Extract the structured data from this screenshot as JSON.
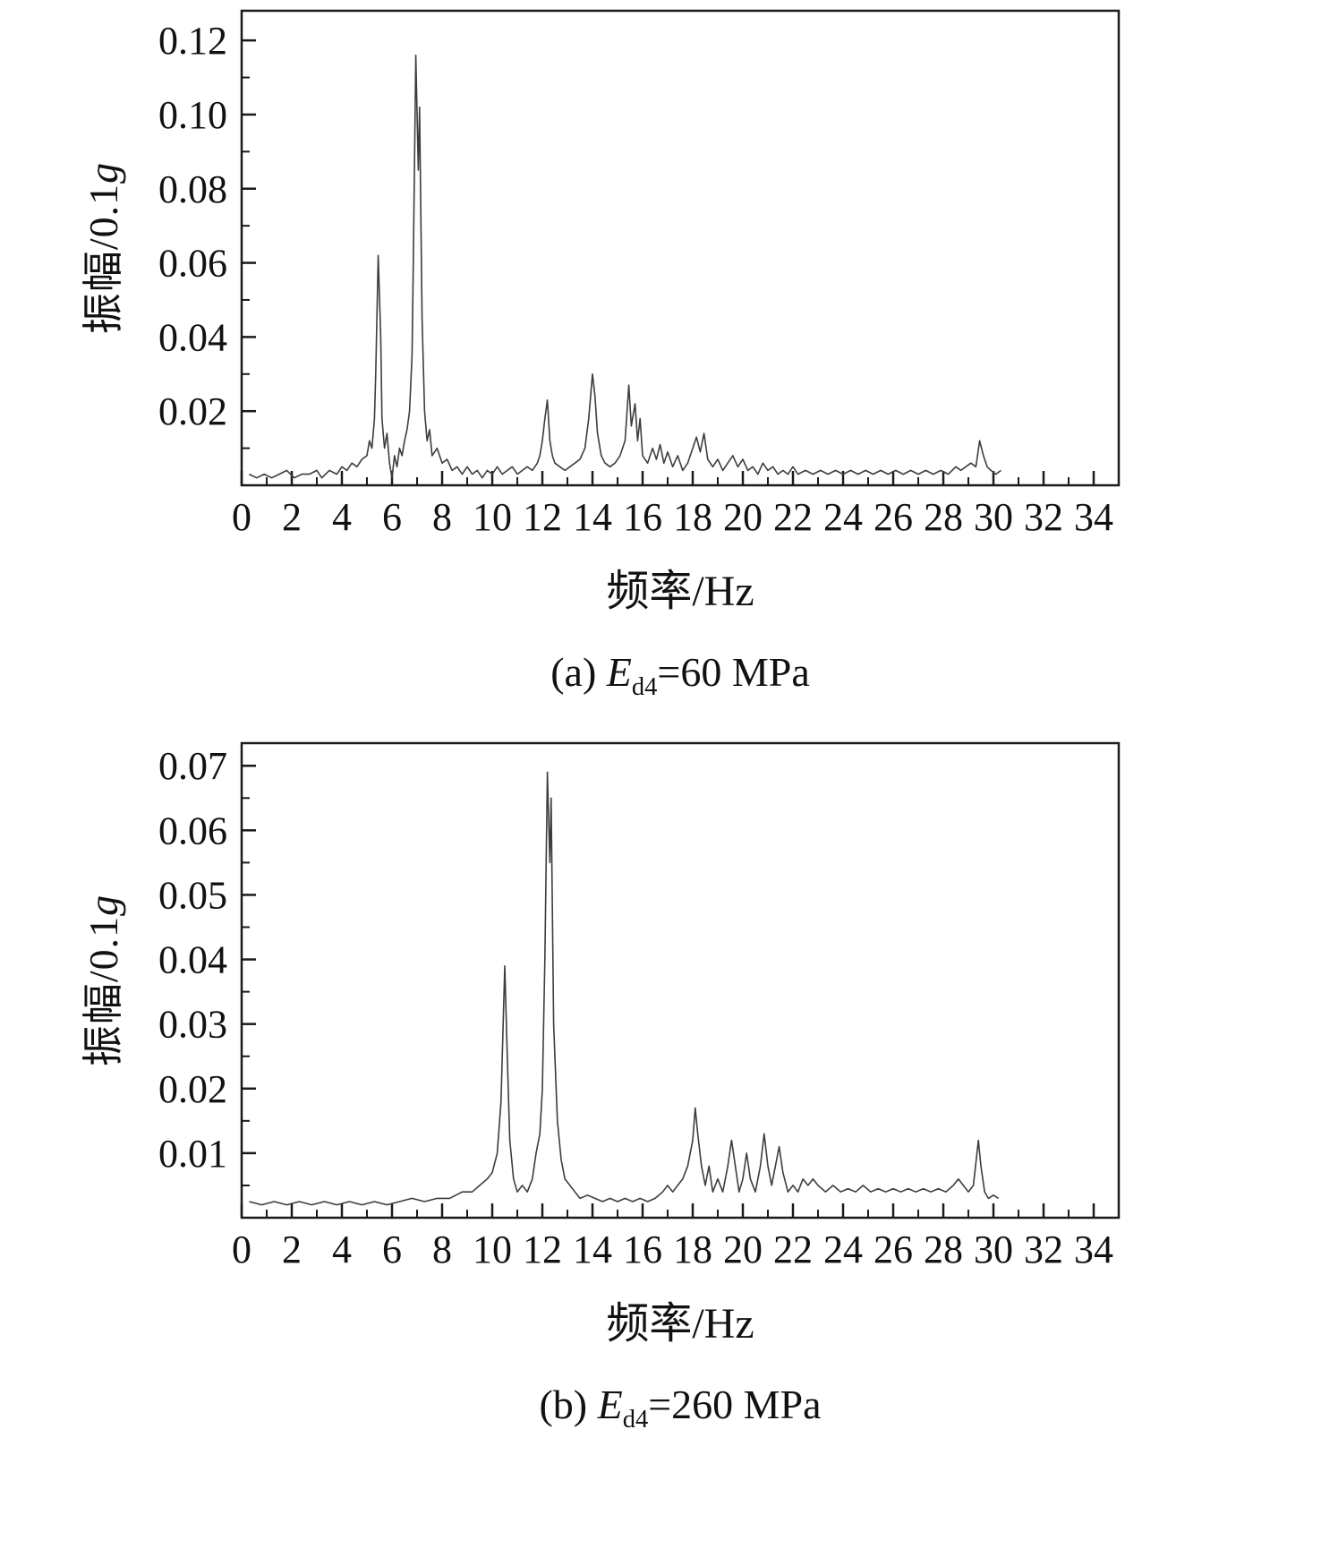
{
  "page": {
    "background": "#ffffff",
    "text_color": "#111111",
    "axis_color": "#1a1a1a",
    "line_color": "#3d3d3d"
  },
  "chart_data": [
    {
      "type": "line",
      "xlabel": "频率/Hz",
      "ylabel_prefix": "振幅/0.1",
      "ylabel_italic": "g",
      "caption": {
        "prefix": "(a) ",
        "var": "E",
        "sub": "d4",
        "rest": "=60 MPa"
      },
      "xlim": [
        0,
        35
      ],
      "ylim": [
        0,
        0.128
      ],
      "grid": false,
      "legend": "none",
      "xticks": [
        0,
        2,
        4,
        6,
        8,
        10,
        12,
        14,
        16,
        18,
        20,
        22,
        24,
        26,
        28,
        30,
        32,
        34
      ],
      "xminor": [
        1,
        3,
        5,
        7,
        9,
        11,
        13,
        15,
        17,
        19,
        21,
        23,
        25,
        27,
        29,
        31,
        33
      ],
      "ytick_values": [
        0.02,
        0.04,
        0.06,
        0.08,
        0.1,
        0.12
      ],
      "ytick_labels": [
        "0.02",
        "0.04",
        "0.06",
        "0.08",
        "0.10",
        "0.12"
      ],
      "yminor": [
        0.01,
        0.03,
        0.05,
        0.07,
        0.09,
        0.11
      ],
      "points": [
        [
          0.3,
          0.003
        ],
        [
          0.6,
          0.002
        ],
        [
          0.9,
          0.003
        ],
        [
          1.2,
          0.002
        ],
        [
          1.5,
          0.003
        ],
        [
          1.8,
          0.004
        ],
        [
          2.1,
          0.002
        ],
        [
          2.4,
          0.003
        ],
        [
          2.7,
          0.003
        ],
        [
          3.0,
          0.004
        ],
        [
          3.2,
          0.002
        ],
        [
          3.5,
          0.004
        ],
        [
          3.8,
          0.003
        ],
        [
          4.0,
          0.005
        ],
        [
          4.2,
          0.004
        ],
        [
          4.4,
          0.006
        ],
        [
          4.6,
          0.005
        ],
        [
          4.8,
          0.007
        ],
        [
          5.0,
          0.008
        ],
        [
          5.1,
          0.012
        ],
        [
          5.2,
          0.01
        ],
        [
          5.3,
          0.018
        ],
        [
          5.35,
          0.03
        ],
        [
          5.45,
          0.062
        ],
        [
          5.55,
          0.04
        ],
        [
          5.6,
          0.018
        ],
        [
          5.7,
          0.01
        ],
        [
          5.8,
          0.014
        ],
        [
          5.9,
          0.006
        ],
        [
          6.0,
          0.002
        ],
        [
          6.1,
          0.008
        ],
        [
          6.2,
          0.005
        ],
        [
          6.3,
          0.01
        ],
        [
          6.4,
          0.008
        ],
        [
          6.5,
          0.012
        ],
        [
          6.6,
          0.015
        ],
        [
          6.7,
          0.02
        ],
        [
          6.8,
          0.035
        ],
        [
          6.85,
          0.06
        ],
        [
          6.95,
          0.116
        ],
        [
          7.05,
          0.085
        ],
        [
          7.1,
          0.102
        ],
        [
          7.2,
          0.045
        ],
        [
          7.3,
          0.02
        ],
        [
          7.4,
          0.012
        ],
        [
          7.5,
          0.015
        ],
        [
          7.6,
          0.008
        ],
        [
          7.8,
          0.01
        ],
        [
          8.0,
          0.006
        ],
        [
          8.2,
          0.007
        ],
        [
          8.4,
          0.004
        ],
        [
          8.6,
          0.005
        ],
        [
          8.8,
          0.003
        ],
        [
          9.0,
          0.005
        ],
        [
          9.2,
          0.003
        ],
        [
          9.4,
          0.004
        ],
        [
          9.6,
          0.002
        ],
        [
          9.8,
          0.004
        ],
        [
          10.0,
          0.003
        ],
        [
          10.2,
          0.005
        ],
        [
          10.4,
          0.003
        ],
        [
          10.6,
          0.004
        ],
        [
          10.8,
          0.005
        ],
        [
          11.0,
          0.003
        ],
        [
          11.2,
          0.004
        ],
        [
          11.4,
          0.005
        ],
        [
          11.6,
          0.004
        ],
        [
          11.8,
          0.006
        ],
        [
          11.9,
          0.008
        ],
        [
          12.0,
          0.012
        ],
        [
          12.1,
          0.018
        ],
        [
          12.2,
          0.023
        ],
        [
          12.3,
          0.012
        ],
        [
          12.4,
          0.008
        ],
        [
          12.5,
          0.006
        ],
        [
          12.7,
          0.005
        ],
        [
          12.9,
          0.004
        ],
        [
          13.1,
          0.005
        ],
        [
          13.3,
          0.006
        ],
        [
          13.5,
          0.007
        ],
        [
          13.7,
          0.01
        ],
        [
          13.85,
          0.018
        ],
        [
          14.0,
          0.03
        ],
        [
          14.1,
          0.024
        ],
        [
          14.2,
          0.014
        ],
        [
          14.35,
          0.008
        ],
        [
          14.5,
          0.006
        ],
        [
          14.7,
          0.005
        ],
        [
          14.9,
          0.006
        ],
        [
          15.1,
          0.008
        ],
        [
          15.3,
          0.012
        ],
        [
          15.45,
          0.027
        ],
        [
          15.55,
          0.016
        ],
        [
          15.7,
          0.022
        ],
        [
          15.8,
          0.012
        ],
        [
          15.9,
          0.018
        ],
        [
          16.0,
          0.008
        ],
        [
          16.2,
          0.006
        ],
        [
          16.4,
          0.01
        ],
        [
          16.55,
          0.007
        ],
        [
          16.7,
          0.011
        ],
        [
          16.85,
          0.006
        ],
        [
          17.0,
          0.009
        ],
        [
          17.2,
          0.005
        ],
        [
          17.4,
          0.008
        ],
        [
          17.6,
          0.004
        ],
        [
          17.8,
          0.006
        ],
        [
          18.0,
          0.01
        ],
        [
          18.15,
          0.013
        ],
        [
          18.3,
          0.009
        ],
        [
          18.45,
          0.014
        ],
        [
          18.6,
          0.007
        ],
        [
          18.8,
          0.005
        ],
        [
          19.0,
          0.007
        ],
        [
          19.2,
          0.004
        ],
        [
          19.4,
          0.006
        ],
        [
          19.6,
          0.008
        ],
        [
          19.8,
          0.005
        ],
        [
          20.0,
          0.007
        ],
        [
          20.2,
          0.004
        ],
        [
          20.4,
          0.005
        ],
        [
          20.6,
          0.003
        ],
        [
          20.8,
          0.006
        ],
        [
          21.0,
          0.004
        ],
        [
          21.2,
          0.005
        ],
        [
          21.4,
          0.003
        ],
        [
          21.6,
          0.004
        ],
        [
          21.8,
          0.003
        ],
        [
          22.0,
          0.005
        ],
        [
          22.2,
          0.003
        ],
        [
          22.5,
          0.004
        ],
        [
          22.8,
          0.003
        ],
        [
          23.1,
          0.004
        ],
        [
          23.4,
          0.003
        ],
        [
          23.7,
          0.004
        ],
        [
          24.0,
          0.003
        ],
        [
          24.3,
          0.004
        ],
        [
          24.6,
          0.003
        ],
        [
          24.9,
          0.004
        ],
        [
          25.2,
          0.003
        ],
        [
          25.5,
          0.004
        ],
        [
          25.8,
          0.003
        ],
        [
          26.1,
          0.004
        ],
        [
          26.4,
          0.003
        ],
        [
          26.7,
          0.004
        ],
        [
          27.0,
          0.003
        ],
        [
          27.3,
          0.004
        ],
        [
          27.6,
          0.003
        ],
        [
          27.9,
          0.004
        ],
        [
          28.2,
          0.003
        ],
        [
          28.5,
          0.005
        ],
        [
          28.7,
          0.004
        ],
        [
          28.9,
          0.005
        ],
        [
          29.1,
          0.006
        ],
        [
          29.3,
          0.005
        ],
        [
          29.45,
          0.012
        ],
        [
          29.6,
          0.008
        ],
        [
          29.75,
          0.005
        ],
        [
          29.9,
          0.004
        ],
        [
          30.1,
          0.003
        ],
        [
          30.3,
          0.004
        ]
      ]
    },
    {
      "type": "line",
      "xlabel": "频率/Hz",
      "ylabel_prefix": "振幅/0.1",
      "ylabel_italic": "g",
      "caption": {
        "prefix": "(b) ",
        "var": "E",
        "sub": "d4",
        "rest": "=260 MPa"
      },
      "xlim": [
        0,
        35
      ],
      "ylim": [
        0,
        0.0735
      ],
      "grid": false,
      "legend": "none",
      "xticks": [
        0,
        2,
        4,
        6,
        8,
        10,
        12,
        14,
        16,
        18,
        20,
        22,
        24,
        26,
        28,
        30,
        32,
        34
      ],
      "xminor": [
        1,
        3,
        5,
        7,
        9,
        11,
        13,
        15,
        17,
        19,
        21,
        23,
        25,
        27,
        29,
        31,
        33
      ],
      "ytick_values": [
        0.01,
        0.02,
        0.03,
        0.04,
        0.05,
        0.06,
        0.07
      ],
      "ytick_labels": [
        "0.01",
        "0.02",
        "0.03",
        "0.04",
        "0.05",
        "0.06",
        "0.07"
      ],
      "yminor": [
        0.005,
        0.015,
        0.025,
        0.035,
        0.045,
        0.055,
        0.065
      ],
      "points": [
        [
          0.3,
          0.0025
        ],
        [
          0.8,
          0.002
        ],
        [
          1.3,
          0.0025
        ],
        [
          1.8,
          0.002
        ],
        [
          2.3,
          0.0025
        ],
        [
          2.8,
          0.002
        ],
        [
          3.3,
          0.0025
        ],
        [
          3.8,
          0.002
        ],
        [
          4.3,
          0.0025
        ],
        [
          4.8,
          0.002
        ],
        [
          5.3,
          0.0025
        ],
        [
          5.8,
          0.002
        ],
        [
          6.3,
          0.0025
        ],
        [
          6.8,
          0.003
        ],
        [
          7.3,
          0.0025
        ],
        [
          7.8,
          0.003
        ],
        [
          8.3,
          0.003
        ],
        [
          8.8,
          0.004
        ],
        [
          9.2,
          0.004
        ],
        [
          9.5,
          0.005
        ],
        [
          9.8,
          0.006
        ],
        [
          10.0,
          0.007
        ],
        [
          10.2,
          0.01
        ],
        [
          10.35,
          0.018
        ],
        [
          10.5,
          0.039
        ],
        [
          10.6,
          0.025
        ],
        [
          10.7,
          0.012
        ],
        [
          10.85,
          0.006
        ],
        [
          11.0,
          0.004
        ],
        [
          11.2,
          0.005
        ],
        [
          11.4,
          0.004
        ],
        [
          11.6,
          0.006
        ],
        [
          11.75,
          0.01
        ],
        [
          11.9,
          0.013
        ],
        [
          12.0,
          0.02
        ],
        [
          12.1,
          0.04
        ],
        [
          12.2,
          0.069
        ],
        [
          12.3,
          0.055
        ],
        [
          12.35,
          0.065
        ],
        [
          12.45,
          0.03
        ],
        [
          12.6,
          0.015
        ],
        [
          12.75,
          0.009
        ],
        [
          12.9,
          0.006
        ],
        [
          13.1,
          0.005
        ],
        [
          13.3,
          0.004
        ],
        [
          13.5,
          0.003
        ],
        [
          13.8,
          0.0035
        ],
        [
          14.1,
          0.003
        ],
        [
          14.4,
          0.0025
        ],
        [
          14.7,
          0.003
        ],
        [
          15.0,
          0.0025
        ],
        [
          15.3,
          0.003
        ],
        [
          15.6,
          0.0025
        ],
        [
          15.9,
          0.003
        ],
        [
          16.2,
          0.0025
        ],
        [
          16.5,
          0.003
        ],
        [
          16.8,
          0.004
        ],
        [
          17.0,
          0.005
        ],
        [
          17.2,
          0.004
        ],
        [
          17.4,
          0.005
        ],
        [
          17.6,
          0.006
        ],
        [
          17.8,
          0.008
        ],
        [
          18.0,
          0.012
        ],
        [
          18.1,
          0.017
        ],
        [
          18.2,
          0.013
        ],
        [
          18.35,
          0.008
        ],
        [
          18.5,
          0.005
        ],
        [
          18.65,
          0.008
        ],
        [
          18.8,
          0.004
        ],
        [
          19.0,
          0.006
        ],
        [
          19.2,
          0.004
        ],
        [
          19.4,
          0.008
        ],
        [
          19.55,
          0.012
        ],
        [
          19.7,
          0.008
        ],
        [
          19.85,
          0.004
        ],
        [
          20.0,
          0.006
        ],
        [
          20.15,
          0.01
        ],
        [
          20.3,
          0.006
        ],
        [
          20.5,
          0.004
        ],
        [
          20.7,
          0.008
        ],
        [
          20.85,
          0.013
        ],
        [
          21.0,
          0.008
        ],
        [
          21.15,
          0.005
        ],
        [
          21.3,
          0.008
        ],
        [
          21.45,
          0.011
        ],
        [
          21.6,
          0.007
        ],
        [
          21.8,
          0.004
        ],
        [
          22.0,
          0.005
        ],
        [
          22.2,
          0.004
        ],
        [
          22.4,
          0.006
        ],
        [
          22.6,
          0.005
        ],
        [
          22.8,
          0.006
        ],
        [
          23.0,
          0.005
        ],
        [
          23.3,
          0.004
        ],
        [
          23.6,
          0.005
        ],
        [
          23.9,
          0.004
        ],
        [
          24.2,
          0.0045
        ],
        [
          24.5,
          0.004
        ],
        [
          24.8,
          0.005
        ],
        [
          25.1,
          0.004
        ],
        [
          25.4,
          0.0045
        ],
        [
          25.7,
          0.004
        ],
        [
          26.0,
          0.0045
        ],
        [
          26.3,
          0.004
        ],
        [
          26.6,
          0.0045
        ],
        [
          26.9,
          0.004
        ],
        [
          27.2,
          0.0045
        ],
        [
          27.5,
          0.004
        ],
        [
          27.8,
          0.0045
        ],
        [
          28.1,
          0.004
        ],
        [
          28.4,
          0.005
        ],
        [
          28.6,
          0.006
        ],
        [
          28.8,
          0.005
        ],
        [
          29.0,
          0.004
        ],
        [
          29.2,
          0.005
        ],
        [
          29.4,
          0.012
        ],
        [
          29.5,
          0.008
        ],
        [
          29.65,
          0.004
        ],
        [
          29.8,
          0.003
        ],
        [
          30.0,
          0.0035
        ],
        [
          30.2,
          0.003
        ]
      ]
    }
  ]
}
